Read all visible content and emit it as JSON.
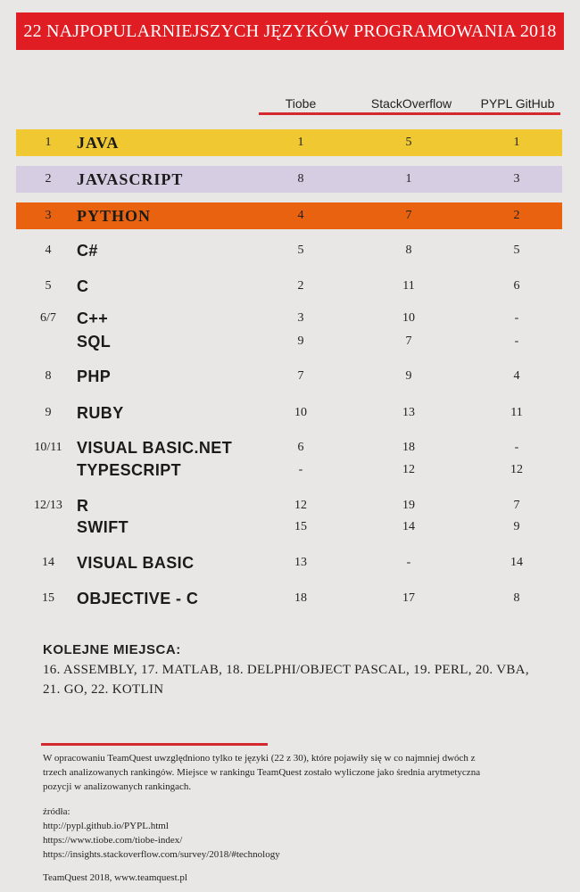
{
  "header": {
    "title": "22 NAJPOPULARNIEJSZYCH JĘZYKÓW PROGRAMOWANIA 2018"
  },
  "columns": [
    "Tiobe",
    "StackOverflow",
    "PYPL GitHub"
  ],
  "colors": {
    "banner": "#e11d24",
    "java": "#f0c832",
    "javascript": "#d6cde2",
    "python": "#e8620f",
    "accent_line": "#d42a2f"
  },
  "rows": [
    {
      "rank": "1",
      "name": "JAVA",
      "tiobe": "1",
      "so": "5",
      "pypl": "1"
    },
    {
      "rank": "2",
      "name": "JAVASCRIPT",
      "tiobe": "8",
      "so": "1",
      "pypl": "3"
    },
    {
      "rank": "3",
      "name": "PYTHON",
      "tiobe": "4",
      "so": "7",
      "pypl": "2"
    },
    {
      "rank": "4",
      "name": "C#",
      "tiobe": "5",
      "so": "8",
      "pypl": "5"
    },
    {
      "rank": "5",
      "name": "C",
      "tiobe": "2",
      "so": "11",
      "pypl": "6"
    },
    {
      "rank": "6/7",
      "name": "C++",
      "tiobe": "3",
      "so": "10",
      "pypl": "-"
    },
    {
      "rank": "",
      "name": "SQL",
      "tiobe": "9",
      "so": "7",
      "pypl": "-"
    },
    {
      "rank": "8",
      "name": "PHP",
      "tiobe": "7",
      "so": "9",
      "pypl": "4"
    },
    {
      "rank": "9",
      "name": "RUBY",
      "tiobe": "10",
      "so": "13",
      "pypl": "11"
    },
    {
      "rank": "10/11",
      "name": "VISUAL BASIC.NET",
      "tiobe": "6",
      "so": "18",
      "pypl": "-"
    },
    {
      "rank": "",
      "name": "TYPESCRIPT",
      "tiobe": "-",
      "so": "12",
      "pypl": "12"
    },
    {
      "rank": "12/13",
      "name": "R",
      "tiobe": "12",
      "so": "19",
      "pypl": "7"
    },
    {
      "rank": "",
      "name": "SWIFT",
      "tiobe": "15",
      "so": "14",
      "pypl": "9"
    },
    {
      "rank": "14",
      "name": "VISUAL BASIC",
      "tiobe": "13",
      "so": "-",
      "pypl": "14"
    },
    {
      "rank": "15",
      "name": "OBJECTIVE - C",
      "tiobe": "18",
      "so": "17",
      "pypl": "8"
    }
  ],
  "more": {
    "title": "KOLEJNE MIEJSCA:",
    "line1": "16. ASSEMBLY, 17. MATLAB, 18. DELPHI/OBJECT PASCAL, 19. PERL, 20. VBA,",
    "line2": "21. GO, 22. KOTLIN"
  },
  "note": {
    "line1": "W opracowaniu TeamQuest uwzględniono tylko te języki (22 z 30), które pojawiły się w co najmniej dwóch z",
    "line2": "trzech  analizowanych rankingów. Miejsce w rankingu TeamQuest zostało wyliczone jako średnia arytmetyczna",
    "line3": "pozycji w analizowanych rankingach."
  },
  "sources": {
    "label": "źródła:",
    "s1": "http://pypl.github.io/PYPL.html",
    "s2": "https://www.tiobe.com/tiobe-index/",
    "s3": "https://insights.stackoverflow.com/survey/2018/#technology"
  },
  "footer": "TeamQuest 2018, www.teamquest.pl"
}
